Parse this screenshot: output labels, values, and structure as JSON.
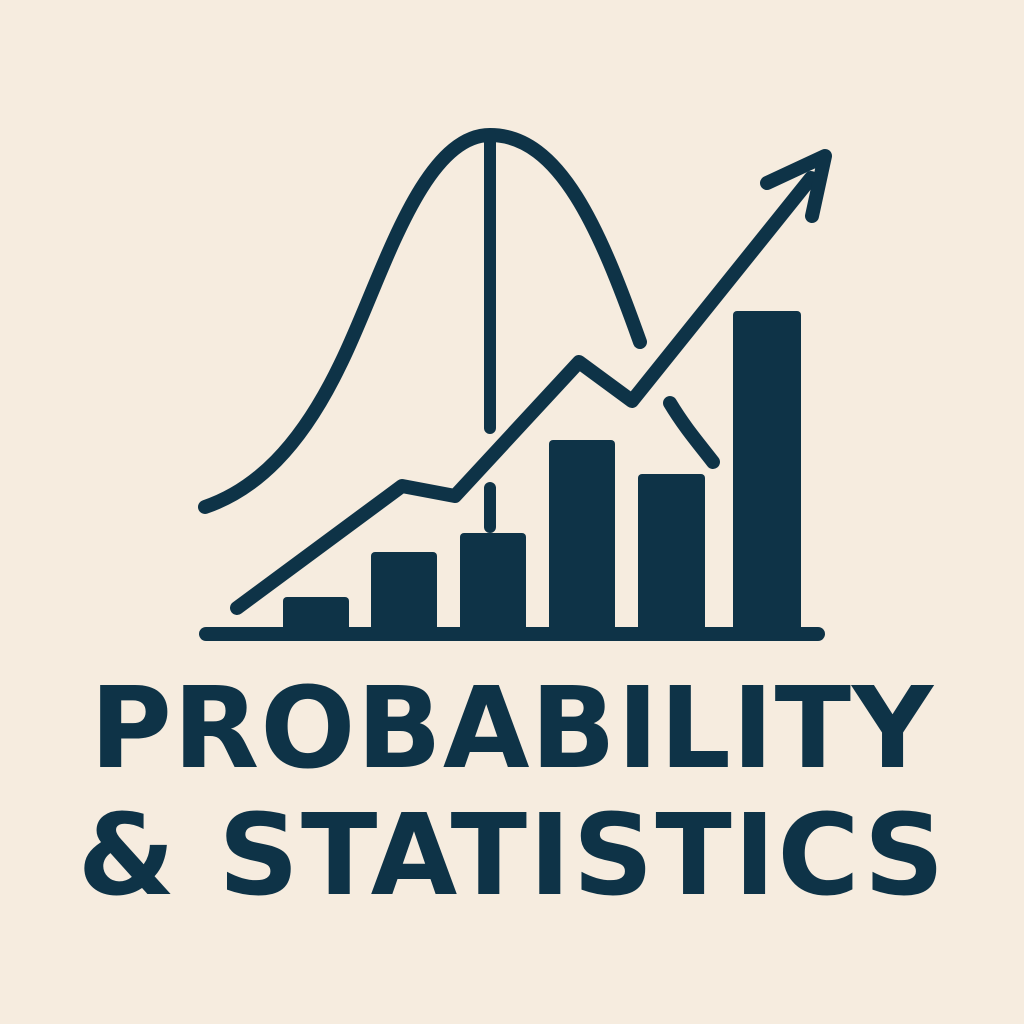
{
  "logo": {
    "title_line1": "PROBABILITY",
    "title_line2": "& STATISTICS"
  },
  "colors": {
    "background": "#f6ecdf",
    "ink": "#0e3347"
  },
  "icons": {
    "emblem": "bar-chart-with-bell-curve-and-trend-arrow-icon"
  }
}
